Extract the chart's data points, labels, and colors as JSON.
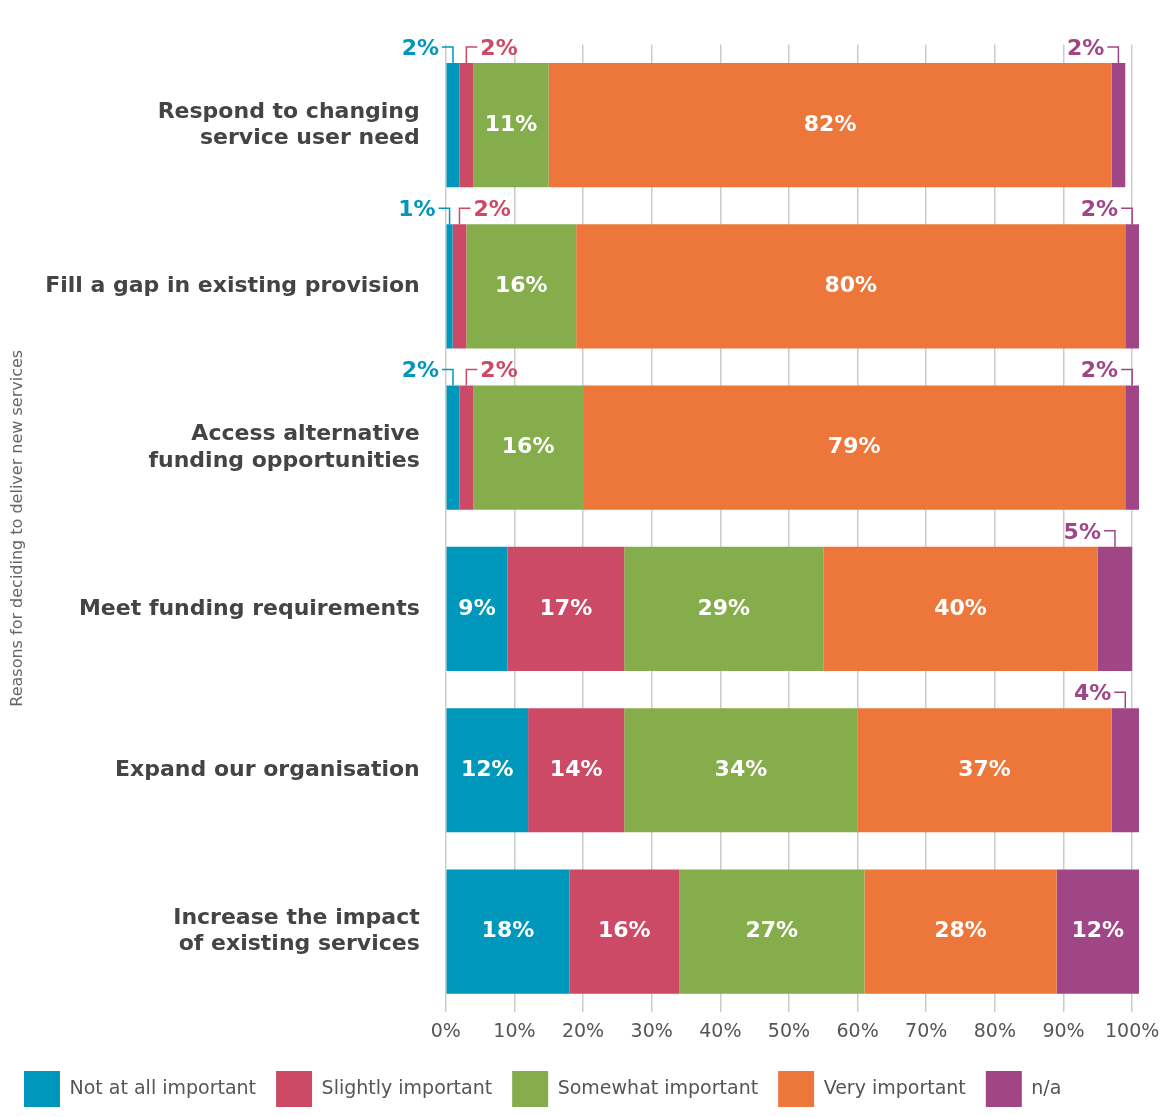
{
  "chart_data": {
    "type": "bar",
    "orientation": "horizontal",
    "stacked": true,
    "ylabel": "Reasons for deciding to deliver new services",
    "categories": [
      "Respond to changing service user need",
      "Fill a gap in existing provision",
      "Access alternative funding opportunities",
      "Meet funding requirements",
      "Expand our organisation",
      "Increase the impact of existing services"
    ],
    "series": [
      {
        "name": "Not at all important",
        "color": "#0097bd",
        "values": [
          2,
          1,
          2,
          9,
          12,
          18
        ],
        "value_labels": [
          "2%",
          "1%",
          "2%",
          "9%",
          "12%",
          "18%"
        ]
      },
      {
        "name": "Slightly important",
        "color": "#cc4a66",
        "values": [
          2,
          2,
          2,
          17,
          14,
          16
        ],
        "value_labels": [
          "2%",
          "2%",
          "2%",
          "17%",
          "14%",
          "16%"
        ]
      },
      {
        "name": "Somewhat important",
        "color": "#86ad4b",
        "values": [
          11,
          16,
          16,
          29,
          34,
          27
        ],
        "value_labels": [
          "11%",
          "16%",
          "16%",
          "29%",
          "34%",
          "27%"
        ]
      },
      {
        "name": "Very important",
        "color": "#ed773b",
        "values": [
          82,
          80,
          79,
          40,
          37,
          28
        ],
        "value_labels": [
          "82%",
          "80%",
          "79%",
          "40%",
          "37%",
          "28%"
        ]
      },
      {
        "name": "n/a",
        "color": "#a04585",
        "values": [
          2,
          2,
          2,
          5,
          4,
          12
        ],
        "value_labels": [
          "2%",
          "2%",
          "2%",
          "5%",
          "4%",
          "12%"
        ]
      }
    ],
    "xlim": [
      0,
      101
    ],
    "xticks": [
      {
        "value": 0,
        "label": "0%"
      },
      {
        "value": 10,
        "label": "10%"
      },
      {
        "value": 20,
        "label": "20%"
      },
      {
        "value": 30,
        "label": "30%"
      },
      {
        "value": 40,
        "label": "40%"
      },
      {
        "value": 50,
        "label": "50%"
      },
      {
        "value": 60,
        "label": "60%"
      },
      {
        "value": 70,
        "label": "70%"
      },
      {
        "value": 80,
        "label": "80%"
      },
      {
        "value": 90,
        "label": "90%"
      },
      {
        "value": 100,
        "label": "100%"
      }
    ],
    "grid": "x",
    "legend": "bottom"
  }
}
